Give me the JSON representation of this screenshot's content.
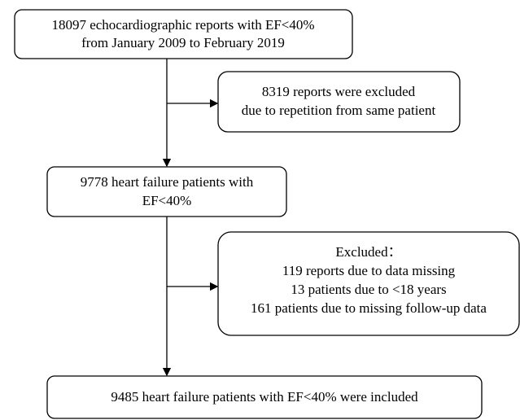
{
  "nodes": [
    {
      "lines": [
        "18097 echocardiographic reports with EF<40%",
        "from January 2009 to February 2019"
      ]
    },
    {
      "lines": [
        "8319 reports were excluded",
        "due to repetition from same patient"
      ]
    },
    {
      "lines": [
        "9778 heart failure patients with",
        "EF<40%"
      ]
    },
    {
      "lines": [
        "Excluded：",
        "119 reports due to data missing",
        "13 patients due to <18 years",
        "161 patients due to missing follow-up data"
      ]
    },
    {
      "lines": [
        "9485 heart failure patients with EF<40% were included"
      ]
    }
  ]
}
